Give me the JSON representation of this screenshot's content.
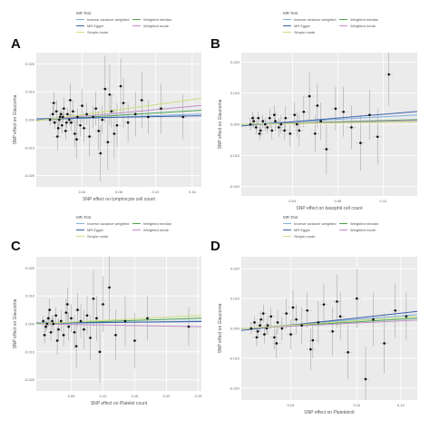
{
  "legend": {
    "title": "MR Test",
    "entries": [
      {
        "label": "Inverse variance weighted",
        "color": "#7fb2dc"
      },
      {
        "label": "Weighted median",
        "color": "#4aa35a"
      },
      {
        "label": "MR Egger",
        "color": "#3d5fa8"
      },
      {
        "label": "Weighted mode",
        "color": "#c08fc4"
      },
      {
        "label": "Simple mode",
        "color": "#c9e07a"
      }
    ]
  },
  "chart_data": [
    {
      "panel": "A",
      "type": "scatter",
      "xlabel": "SNP effect on lymphocyte cell count",
      "ylabel": "SNP effect on Glaucoma",
      "xlim": [
        -0.01,
        0.17
      ],
      "ylim": [
        -0.024,
        0.024
      ],
      "xticks": [
        0.04,
        0.08,
        0.12,
        0.16
      ],
      "xtick_labels": [
        "0.04",
        "0.08",
        "0.12",
        "0.16"
      ],
      "yticks": [
        -0.02,
        -0.01,
        0.0,
        0.01,
        0.02
      ],
      "ytick_labels": [
        "-0.020",
        "-0.010",
        "0.000",
        "0.010",
        "0.020"
      ],
      "grid": true,
      "points": [
        [
          0.005,
          0.0
        ],
        [
          0.008,
          0.002
        ],
        [
          0.01,
          -0.001
        ],
        [
          0.012,
          0.003
        ],
        [
          0.014,
          -0.003
        ],
        [
          0.016,
          0.001
        ],
        [
          0.018,
          -0.002
        ],
        [
          0.02,
          0.004
        ],
        [
          0.022,
          -0.004
        ],
        [
          0.024,
          0.002
        ],
        [
          0.026,
          0.0
        ],
        [
          0.028,
          -0.001
        ],
        [
          0.03,
          0.003
        ],
        [
          0.032,
          -0.005
        ],
        [
          0.035,
          0.001
        ],
        [
          0.038,
          -0.002
        ],
        [
          0.04,
          0.005
        ],
        [
          0.042,
          -0.003
        ],
        [
          0.045,
          0.002
        ],
        [
          0.048,
          -0.006
        ],
        [
          0.052,
          0.001
        ],
        [
          0.055,
          0.004
        ],
        [
          0.058,
          -0.004
        ],
        [
          0.062,
          0.0
        ],
        [
          0.065,
          0.011
        ],
        [
          0.068,
          -0.008
        ],
        [
          0.072,
          0.003
        ],
        [
          0.078,
          -0.002
        ],
        [
          0.085,
          0.006
        ],
        [
          0.09,
          -0.001
        ],
        [
          0.098,
          0.002
        ],
        [
          0.105,
          0.007
        ],
        [
          0.112,
          0.001
        ],
        [
          0.126,
          0.004
        ],
        [
          0.15,
          0.001
        ],
        [
          0.009,
          0.006
        ],
        [
          0.013,
          -0.006
        ],
        [
          0.027,
          0.007
        ],
        [
          0.034,
          -0.007
        ],
        [
          0.06,
          -0.012
        ],
        [
          0.07,
          0.009
        ],
        [
          0.075,
          -0.005
        ],
        [
          0.082,
          0.012
        ],
        [
          0.015,
          0.0
        ],
        [
          0.019,
          0.001
        ],
        [
          0.023,
          -0.001
        ],
        [
          0.017,
          0.002
        ]
      ],
      "errors_y": [
        0.002,
        0.003,
        0.002,
        0.004,
        0.003,
        0.002,
        0.003,
        0.004,
        0.003,
        0.002,
        0.002,
        0.003,
        0.004,
        0.005,
        0.003,
        0.004,
        0.006,
        0.005,
        0.004,
        0.007,
        0.004,
        0.006,
        0.007,
        0.005,
        0.012,
        0.01,
        0.006,
        0.008,
        0.009,
        0.007,
        0.008,
        0.01,
        0.006,
        0.009,
        0.008,
        0.004,
        0.005,
        0.006,
        0.007,
        0.01,
        0.011,
        0.009,
        0.01,
        0.002,
        0.002,
        0.002,
        0.002
      ],
      "lines": [
        {
          "name": "Inverse variance weighted",
          "slope": 0.012,
          "intercept": 0.0
        },
        {
          "name": "Weighted median",
          "slope": 0.02,
          "intercept": 0.0
        },
        {
          "name": "MR Egger",
          "slope": 0.006,
          "intercept": 0.0004
        },
        {
          "name": "Weighted mode",
          "slope": 0.03,
          "intercept": 0.0
        },
        {
          "name": "Simple mode",
          "slope": 0.045,
          "intercept": 0.0
        }
      ]
    },
    {
      "panel": "B",
      "type": "scatter",
      "xlabel": "SNP effect on basophil cell count",
      "ylabel": "SNP effect on Glaucoma",
      "xlim": [
        -0.005,
        0.15
      ],
      "ylim": [
        -0.023,
        0.023
      ],
      "xticks": [
        0.04,
        0.08,
        0.12
      ],
      "xtick_labels": [
        "0.04",
        "0.08",
        "0.12"
      ],
      "yticks": [
        -0.02,
        -0.01,
        0.0,
        0.01,
        0.02
      ],
      "ytick_labels": [
        "-0.020",
        "-0.010",
        "0.000",
        "0.010",
        "0.020"
      ],
      "grid": true,
      "points": [
        [
          0.003,
          0.0
        ],
        [
          0.006,
          0.001
        ],
        [
          0.008,
          -0.001
        ],
        [
          0.01,
          0.002
        ],
        [
          0.012,
          -0.002
        ],
        [
          0.014,
          0.001
        ],
        [
          0.016,
          0.0
        ],
        [
          0.018,
          -0.001
        ],
        [
          0.02,
          0.002
        ],
        [
          0.022,
          -0.002
        ],
        [
          0.025,
          0.001
        ],
        [
          0.028,
          -0.001
        ],
        [
          0.03,
          0.0
        ],
        [
          0.034,
          0.002
        ],
        [
          0.038,
          -0.003
        ],
        [
          0.042,
          0.003
        ],
        [
          0.046,
          -0.002
        ],
        [
          0.05,
          0.004
        ],
        [
          0.055,
          0.009
        ],
        [
          0.06,
          -0.003
        ],
        [
          0.065,
          0.001
        ],
        [
          0.07,
          -0.008
        ],
        [
          0.078,
          0.005
        ],
        [
          0.085,
          0.004
        ],
        [
          0.092,
          -0.001
        ],
        [
          0.1,
          -0.006
        ],
        [
          0.108,
          0.003
        ],
        [
          0.115,
          -0.004
        ],
        [
          0.125,
          0.016
        ],
        [
          0.005,
          0.002
        ],
        [
          0.011,
          -0.003
        ],
        [
          0.024,
          0.003
        ],
        [
          0.033,
          -0.002
        ],
        [
          0.044,
          0.0
        ],
        [
          0.062,
          0.006
        ]
      ],
      "errors_y": [
        0.002,
        0.002,
        0.002,
        0.002,
        0.002,
        0.002,
        0.002,
        0.002,
        0.003,
        0.003,
        0.003,
        0.003,
        0.003,
        0.004,
        0.004,
        0.004,
        0.005,
        0.005,
        0.008,
        0.006,
        0.006,
        0.008,
        0.007,
        0.008,
        0.007,
        0.009,
        0.008,
        0.009,
        0.01,
        0.002,
        0.002,
        0.003,
        0.003,
        0.004,
        0.007
      ],
      "lines": [
        {
          "name": "Inverse variance weighted",
          "slope": 0.02,
          "intercept": 0.0
        },
        {
          "name": "Weighted median",
          "slope": 0.01,
          "intercept": 0.0
        },
        {
          "name": "MR Egger",
          "slope": 0.03,
          "intercept": -0.0004
        },
        {
          "name": "Weighted mode",
          "slope": 0.008,
          "intercept": 0.0
        },
        {
          "name": "Simple mode",
          "slope": 0.005,
          "intercept": 0.0
        }
      ]
    },
    {
      "panel": "C",
      "type": "scatter",
      "xlabel": "SNP effect on Platelet count",
      "ylabel": "SNP effect on Glaucoma",
      "xlim": [
        -0.005,
        0.255
      ],
      "ylim": [
        -0.024,
        0.024
      ],
      "xticks": [
        0.05,
        0.1,
        0.15,
        0.2,
        0.25
      ],
      "xtick_labels": [
        "0.05",
        "0.10",
        "0.15",
        "0.20",
        "0.25"
      ],
      "yticks": [
        -0.02,
        -0.01,
        0.0,
        0.01,
        0.02
      ],
      "ytick_labels": [
        "-0.020",
        "-0.010",
        "0.000",
        "0.010",
        "0.020"
      ],
      "grid": true,
      "points": [
        [
          0.006,
          0.001
        ],
        [
          0.01,
          -0.001
        ],
        [
          0.014,
          0.002
        ],
        [
          0.018,
          -0.003
        ],
        [
          0.022,
          0.0
        ],
        [
          0.026,
          0.003
        ],
        [
          0.03,
          -0.002
        ],
        [
          0.034,
          0.001
        ],
        [
          0.038,
          -0.004
        ],
        [
          0.042,
          0.004
        ],
        [
          0.046,
          -0.001
        ],
        [
          0.05,
          0.002
        ],
        [
          0.055,
          -0.003
        ],
        [
          0.06,
          0.005
        ],
        [
          0.065,
          0.001
        ],
        [
          0.07,
          -0.002
        ],
        [
          0.075,
          0.003
        ],
        [
          0.08,
          -0.005
        ],
        [
          0.09,
          0.002
        ],
        [
          0.1,
          0.007
        ],
        [
          0.11,
          0.013
        ],
        [
          0.12,
          -0.004
        ],
        [
          0.135,
          0.001
        ],
        [
          0.15,
          -0.006
        ],
        [
          0.17,
          0.002
        ],
        [
          0.235,
          -0.001
        ],
        [
          0.008,
          -0.004
        ],
        [
          0.016,
          0.005
        ],
        [
          0.028,
          -0.006
        ],
        [
          0.044,
          0.007
        ],
        [
          0.058,
          -0.008
        ],
        [
          0.085,
          0.009
        ],
        [
          0.095,
          -0.01
        ],
        [
          0.012,
          0.0
        ],
        [
          0.02,
          0.001
        ]
      ],
      "errors_y": [
        0.002,
        0.002,
        0.003,
        0.003,
        0.003,
        0.003,
        0.004,
        0.004,
        0.004,
        0.005,
        0.005,
        0.005,
        0.006,
        0.006,
        0.006,
        0.007,
        0.007,
        0.008,
        0.008,
        0.01,
        0.012,
        0.009,
        0.009,
        0.01,
        0.008,
        0.007,
        0.003,
        0.004,
        0.005,
        0.006,
        0.008,
        0.01,
        0.011,
        0.002,
        0.002
      ],
      "lines": [
        {
          "name": "Inverse variance weighted",
          "slope": 0.004,
          "intercept": 0.0
        },
        {
          "name": "Weighted median",
          "slope": 0.008,
          "intercept": 0.0
        },
        {
          "name": "MR Egger",
          "slope": 0.002,
          "intercept": 0.0003
        },
        {
          "name": "Weighted mode",
          "slope": -0.004,
          "intercept": 0.0
        },
        {
          "name": "Simple mode",
          "slope": 0.012,
          "intercept": 0.0
        }
      ]
    },
    {
      "panel": "D",
      "type": "scatter",
      "xlabel": "SNP effect on Plateletcrit",
      "ylabel": "SNP effect on Glaucoma",
      "xlim": [
        -0.005,
        0.155
      ],
      "ylim": [
        -0.024,
        0.024
      ],
      "xticks": [
        0.04,
        0.1,
        0.14
      ],
      "xtick_labels": [
        "0.04",
        "0.10",
        "0.14"
      ],
      "yticks": [
        -0.02,
        -0.01,
        0.0,
        0.01,
        0.02
      ],
      "ytick_labels": [
        "-0.020",
        "-0.010",
        "0.000",
        "0.010",
        "0.020"
      ],
      "grid": true,
      "points": [
        [
          0.004,
          0.0
        ],
        [
          0.007,
          0.002
        ],
        [
          0.01,
          -0.001
        ],
        [
          0.013,
          0.003
        ],
        [
          0.016,
          -0.002
        ],
        [
          0.019,
          0.001
        ],
        [
          0.022,
          0.004
        ],
        [
          0.025,
          -0.003
        ],
        [
          0.028,
          0.002
        ],
        [
          0.032,
          0.0
        ],
        [
          0.036,
          0.005
        ],
        [
          0.04,
          -0.002
        ],
        [
          0.045,
          0.003
        ],
        [
          0.05,
          0.001
        ],
        [
          0.055,
          0.006
        ],
        [
          0.06,
          -0.004
        ],
        [
          0.065,
          0.002
        ],
        [
          0.07,
          0.008
        ],
        [
          0.078,
          -0.001
        ],
        [
          0.085,
          0.004
        ],
        [
          0.092,
          -0.008
        ],
        [
          0.1,
          0.01
        ],
        [
          0.108,
          -0.017
        ],
        [
          0.115,
          0.003
        ],
        [
          0.125,
          -0.005
        ],
        [
          0.135,
          0.006
        ],
        [
          0.145,
          0.004
        ],
        [
          0.009,
          -0.003
        ],
        [
          0.015,
          0.005
        ],
        [
          0.027,
          -0.005
        ],
        [
          0.042,
          0.007
        ],
        [
          0.058,
          -0.007
        ],
        [
          0.082,
          0.009
        ],
        [
          0.012,
          0.001
        ],
        [
          0.018,
          0.0
        ]
      ],
      "errors_y": [
        0.002,
        0.002,
        0.002,
        0.003,
        0.003,
        0.003,
        0.003,
        0.004,
        0.004,
        0.004,
        0.005,
        0.005,
        0.005,
        0.006,
        0.006,
        0.006,
        0.007,
        0.007,
        0.008,
        0.008,
        0.009,
        0.01,
        0.011,
        0.009,
        0.01,
        0.009,
        0.008,
        0.003,
        0.003,
        0.005,
        0.006,
        0.007,
        0.009,
        0.002,
        0.002
      ],
      "lines": [
        {
          "name": "Inverse variance weighted",
          "slope": 0.03,
          "intercept": 0.0
        },
        {
          "name": "Weighted median",
          "slope": 0.022,
          "intercept": 0.0
        },
        {
          "name": "MR Egger",
          "slope": 0.04,
          "intercept": -0.0005
        },
        {
          "name": "Weighted mode",
          "slope": 0.018,
          "intercept": 0.0
        },
        {
          "name": "Simple mode",
          "slope": 0.026,
          "intercept": 0.0
        }
      ]
    }
  ]
}
